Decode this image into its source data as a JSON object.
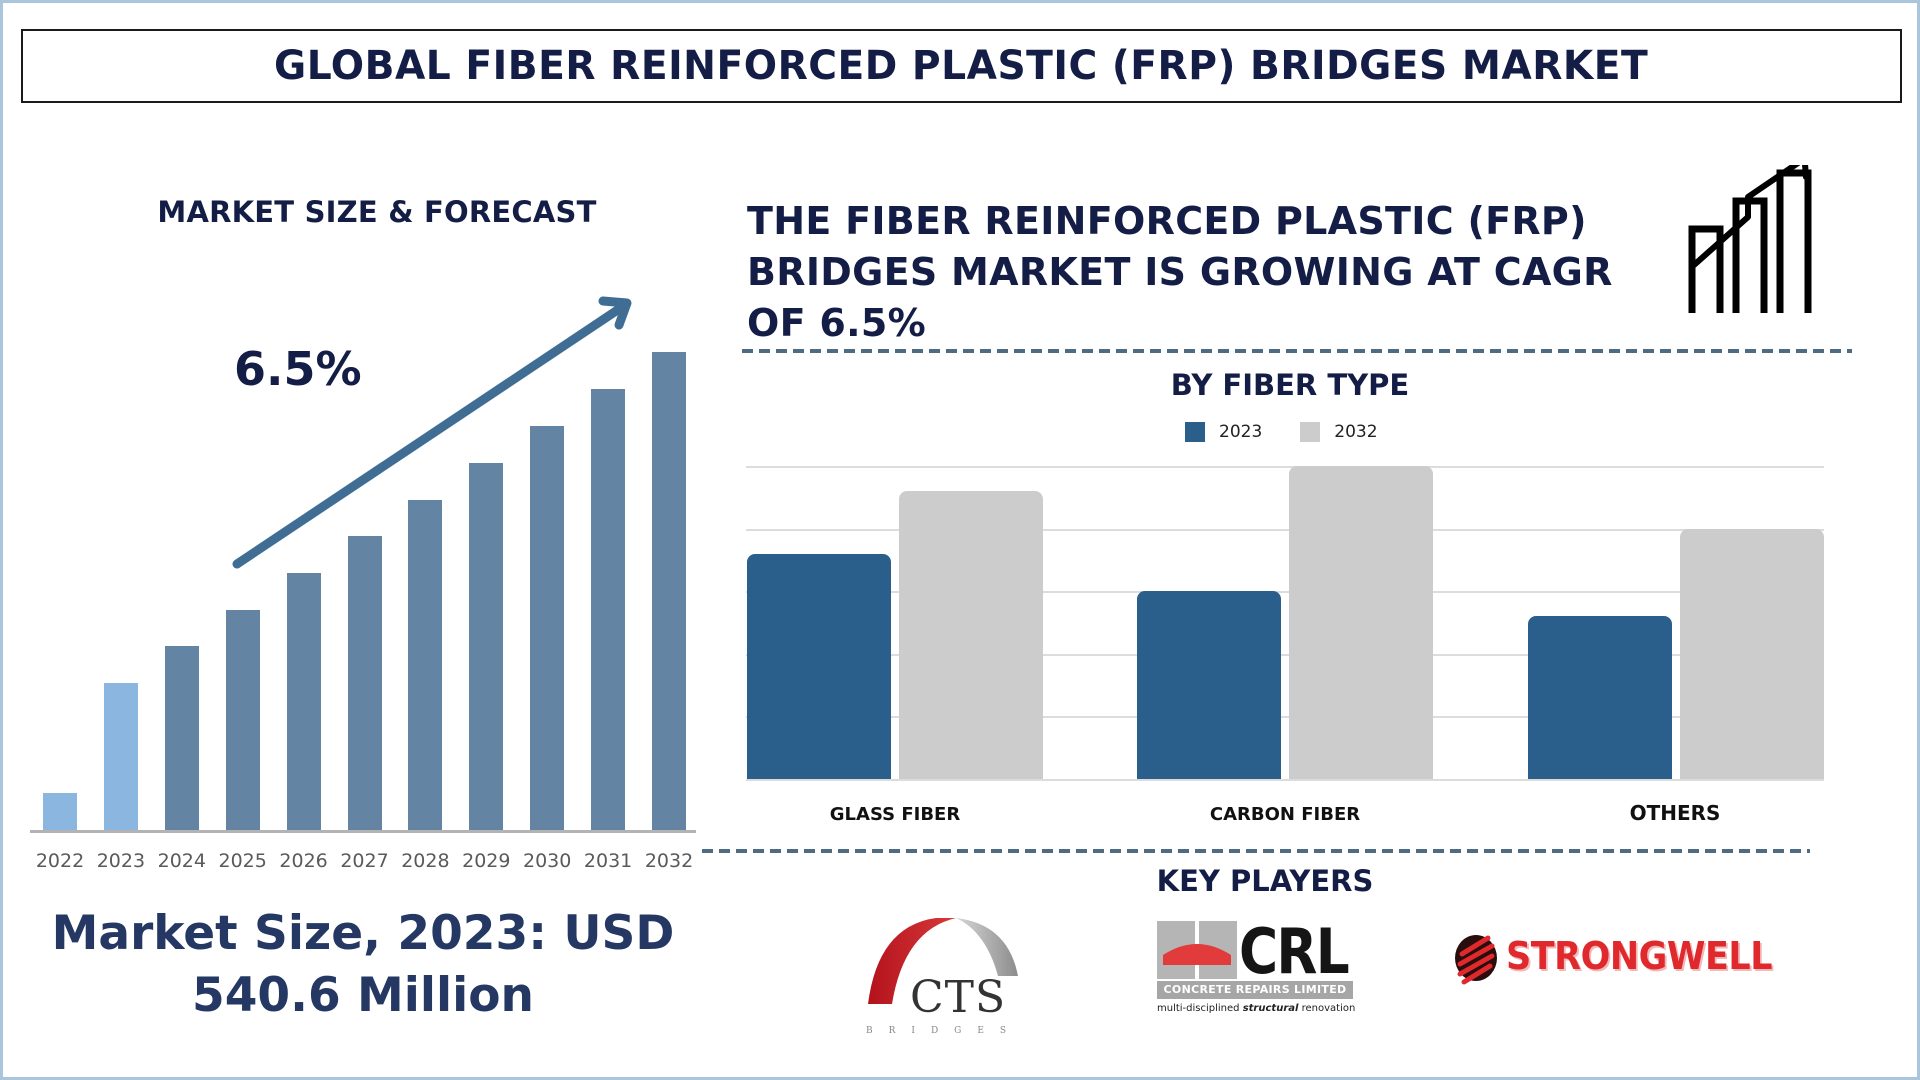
{
  "title": "GLOBAL FIBER REINFORCED PLASTIC (FRP) BRIDGES MARKET",
  "left_panel": {
    "heading": "MARKET SIZE & FORECAST",
    "cagr_label": "6.5%",
    "market_size_line1": "Market Size, 2023: USD",
    "market_size_line2": "540.6 Million"
  },
  "right_panel": {
    "headline_line1": "THE FIBER REINFORCED PLASTIC (FRP)",
    "headline_line2": "BRIDGES MARKET IS GROWING AT CAGR",
    "headline_line3": "OF 6.5%",
    "icon": "growth-chart-icon",
    "segment_heading": "BY FIBER TYPE",
    "legend": [
      {
        "label": "2023",
        "color": "#2a5f8c"
      },
      {
        "label": "2032",
        "color": "#cccccc"
      }
    ],
    "key_players_heading": "KEY PLAYERS",
    "key_players": [
      {
        "name": "CTS",
        "subtitle": "BRIDGES"
      },
      {
        "name": "CRL",
        "subtitle": "CONCRETE REPAIRS LIMITED",
        "tagline_pre": "multi-disciplined ",
        "tagline_em": "structural",
        "tagline_post": " renovation"
      },
      {
        "name": "STRONGWELL"
      }
    ]
  },
  "colors": {
    "title_text": "#131d45",
    "bar_historic": "#8bb6df",
    "bar_forecast": "#6384a3",
    "arrow": "#3f6d93",
    "series_2023": "#2a5f8c",
    "series_2032": "#cccccc",
    "dash_line": "#4f6b82",
    "frame": "#a9c6dd"
  },
  "chart_data": [
    {
      "type": "bar",
      "title": "MARKET SIZE & FORECAST",
      "categories": [
        "2022",
        "2023",
        "2024",
        "2025",
        "2026",
        "2027",
        "2028",
        "2029",
        "2030",
        "2031",
        "2032"
      ],
      "values": [
        37,
        147,
        184,
        220,
        257,
        294,
        330,
        367,
        404,
        441,
        478
      ],
      "value_units": "relative bar height (unlabeled axis)",
      "highlighted": [
        "2022",
        "2023"
      ],
      "annotation": "6.5% (CAGR arrow)",
      "xlabel": "",
      "ylabel": "",
      "grid": false
    },
    {
      "type": "bar",
      "title": "BY FIBER TYPE",
      "categories": [
        "GLASS FIBER",
        "CARBON FIBER",
        "OTHERS"
      ],
      "series": [
        {
          "name": "2023",
          "values": [
            3.6,
            3.0,
            2.6
          ]
        },
        {
          "name": "2032",
          "values": [
            4.6,
            5.0,
            4.0
          ]
        }
      ],
      "value_units": "gridline units (unlabeled axis)",
      "ylim": [
        0,
        5
      ],
      "grid": true,
      "legend_position": "top"
    }
  ]
}
